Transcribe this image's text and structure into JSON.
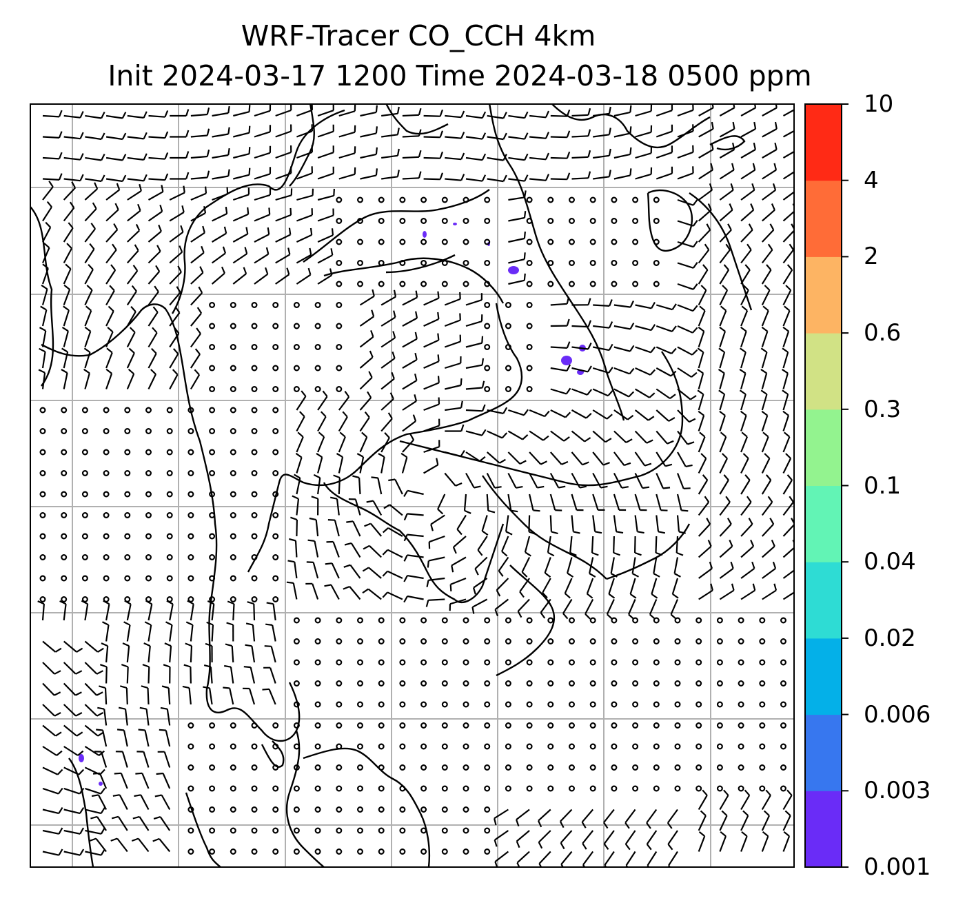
{
  "title": {
    "line1": "WRF-Tracer CO_CCH 4km",
    "line2": "Init 2024-03-17 1200 Time 2024-03-18 0500 ppm"
  },
  "colorbar": {
    "levels": [
      "0.001",
      "0.003",
      "0.006",
      "0.02",
      "0.04",
      "0.1",
      "0.3",
      "0.6",
      "2",
      "4",
      "10"
    ],
    "colors": [
      "#6a2cf7",
      "#3777ef",
      "#04b0e8",
      "#2edcd4",
      "#62f4b5",
      "#93f38f",
      "#d1e285",
      "#fdb463",
      "#ff6c37",
      "#ff2a15"
    ]
  },
  "map": {
    "grid": "on",
    "barb_color": "#000000",
    "tracer_color": "#6a2cf7",
    "gridline_color": "#b0b0b0"
  }
}
